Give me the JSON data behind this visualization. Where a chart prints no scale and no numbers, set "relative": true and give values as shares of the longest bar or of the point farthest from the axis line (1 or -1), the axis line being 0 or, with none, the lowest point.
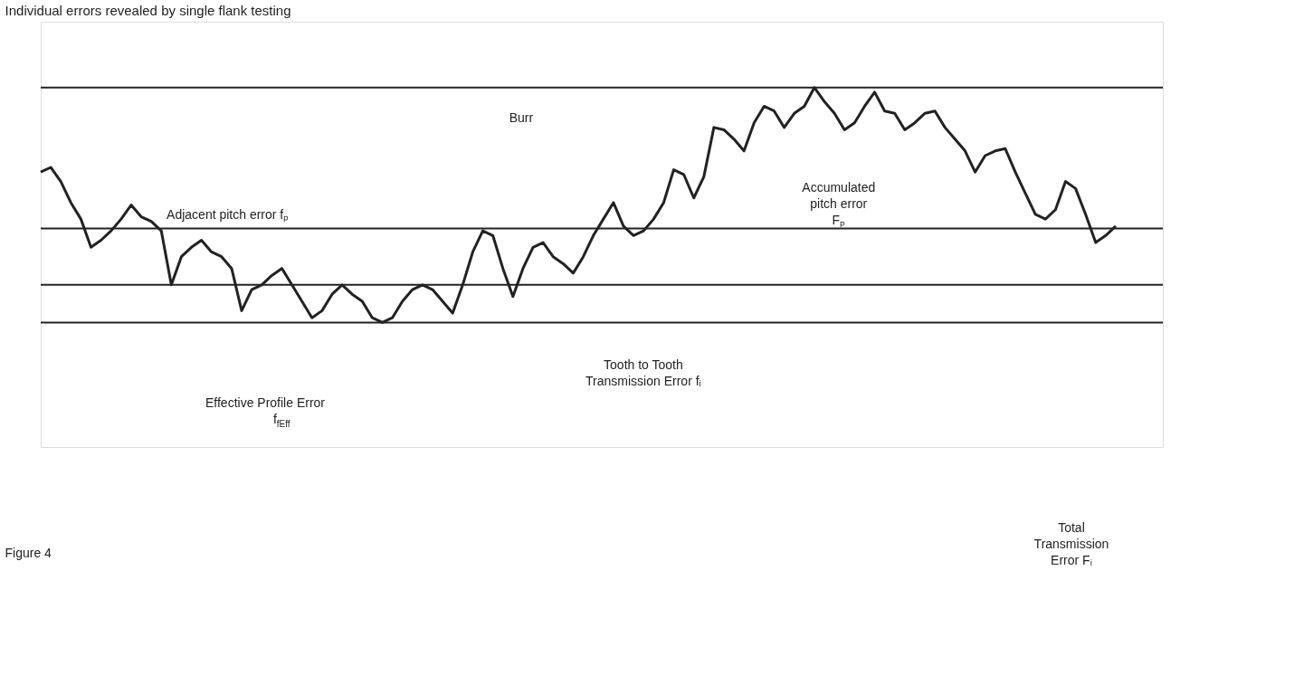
{
  "chart_data": {
    "type": "line",
    "relative": true,
    "title": "Individual errors revealed by single flank testing",
    "categories": [
      null,
      null,
      null,
      null,
      null,
      null,
      null,
      null,
      null,
      null,
      null,
      null,
      null,
      null,
      null,
      null,
      null,
      null,
      null,
      null,
      null,
      null,
      null,
      null,
      null,
      null,
      null,
      null,
      null,
      null,
      null,
      null,
      null,
      null,
      null,
      null,
      null,
      null,
      null,
      null,
      null,
      null,
      null,
      null,
      null,
      null,
      null,
      null,
      null,
      null,
      null,
      null,
      null,
      null,
      null,
      null,
      null,
      null,
      null,
      null,
      null,
      null,
      null,
      null,
      null,
      null,
      null,
      null,
      null,
      null,
      null,
      null,
      null,
      null,
      null,
      null,
      null,
      null,
      null,
      null,
      null,
      null,
      null,
      null,
      null,
      null,
      null,
      null,
      null,
      null,
      null,
      null,
      null,
      null,
      null,
      null,
      null,
      null,
      null,
      null,
      null,
      null,
      null,
      null,
      null,
      null,
      null,
      null
    ],
    "series": [
      {
        "color": "#222222",
        "values": [
          0.64,
          0.66,
          0.6,
          0.51,
          0.44,
          0.32,
          0.35,
          0.39,
          0.44,
          0.5,
          0.45,
          0.43,
          0.39,
          0.16,
          0.28,
          0.32,
          0.35,
          0.3,
          0.28,
          0.23,
          0.05,
          0.14,
          0.16,
          0.2,
          0.23,
          0.16,
          0.09,
          0.02,
          0.05,
          0.12,
          0.16,
          0.12,
          0.09,
          0.02,
          0,
          0.02,
          0.09,
          0.14,
          0.16,
          0.14,
          0.09,
          0.04,
          0.16,
          0.3,
          0.39,
          0.37,
          0.23,
          0.11,
          0.23,
          0.32,
          0.34,
          0.28,
          0.25,
          0.21,
          0.28,
          0.37,
          0.44,
          0.51,
          0.41,
          0.37,
          0.39,
          0.44,
          0.51,
          0.65,
          0.63,
          0.53,
          0.62,
          0.83,
          0.82,
          0.78,
          0.73,
          0.85,
          0.92,
          0.9,
          0.83,
          0.89,
          0.92,
          1.0,
          0.94,
          0.89,
          0.82,
          0.85,
          0.92,
          0.98,
          0.9,
          0.89,
          0.82,
          0.85,
          0.89,
          0.9,
          0.83,
          0.78,
          0.73,
          0.64,
          0.71,
          0.73,
          0.74,
          0.64,
          0.55,
          0.46,
          0.44,
          0.48,
          0.6,
          0.57,
          0.46,
          0.34,
          0.37,
          0.41
        ]
      }
    ],
    "ref_lines": [
      {
        "axis": "y",
        "value": 1,
        "label": null
      },
      {
        "axis": "y",
        "value": 0.4,
        "label": null
      },
      {
        "axis": "y",
        "value": 0.16,
        "label": null
      },
      {
        "axis": "y",
        "value": 0,
        "label": null
      }
    ],
    "annotations": [
      "Burr",
      "Adjacent pitch error fₚ",
      "Accumulated pitch error Fₚ",
      "Tooth to Tooth Transmission Error fᵢ",
      "Effective Profile Error f$_{fEff}$",
      "Total Transmission Error Fᵢ",
      "Figure 4"
    ],
    "grid": false,
    "tick_labels": false
  }
}
